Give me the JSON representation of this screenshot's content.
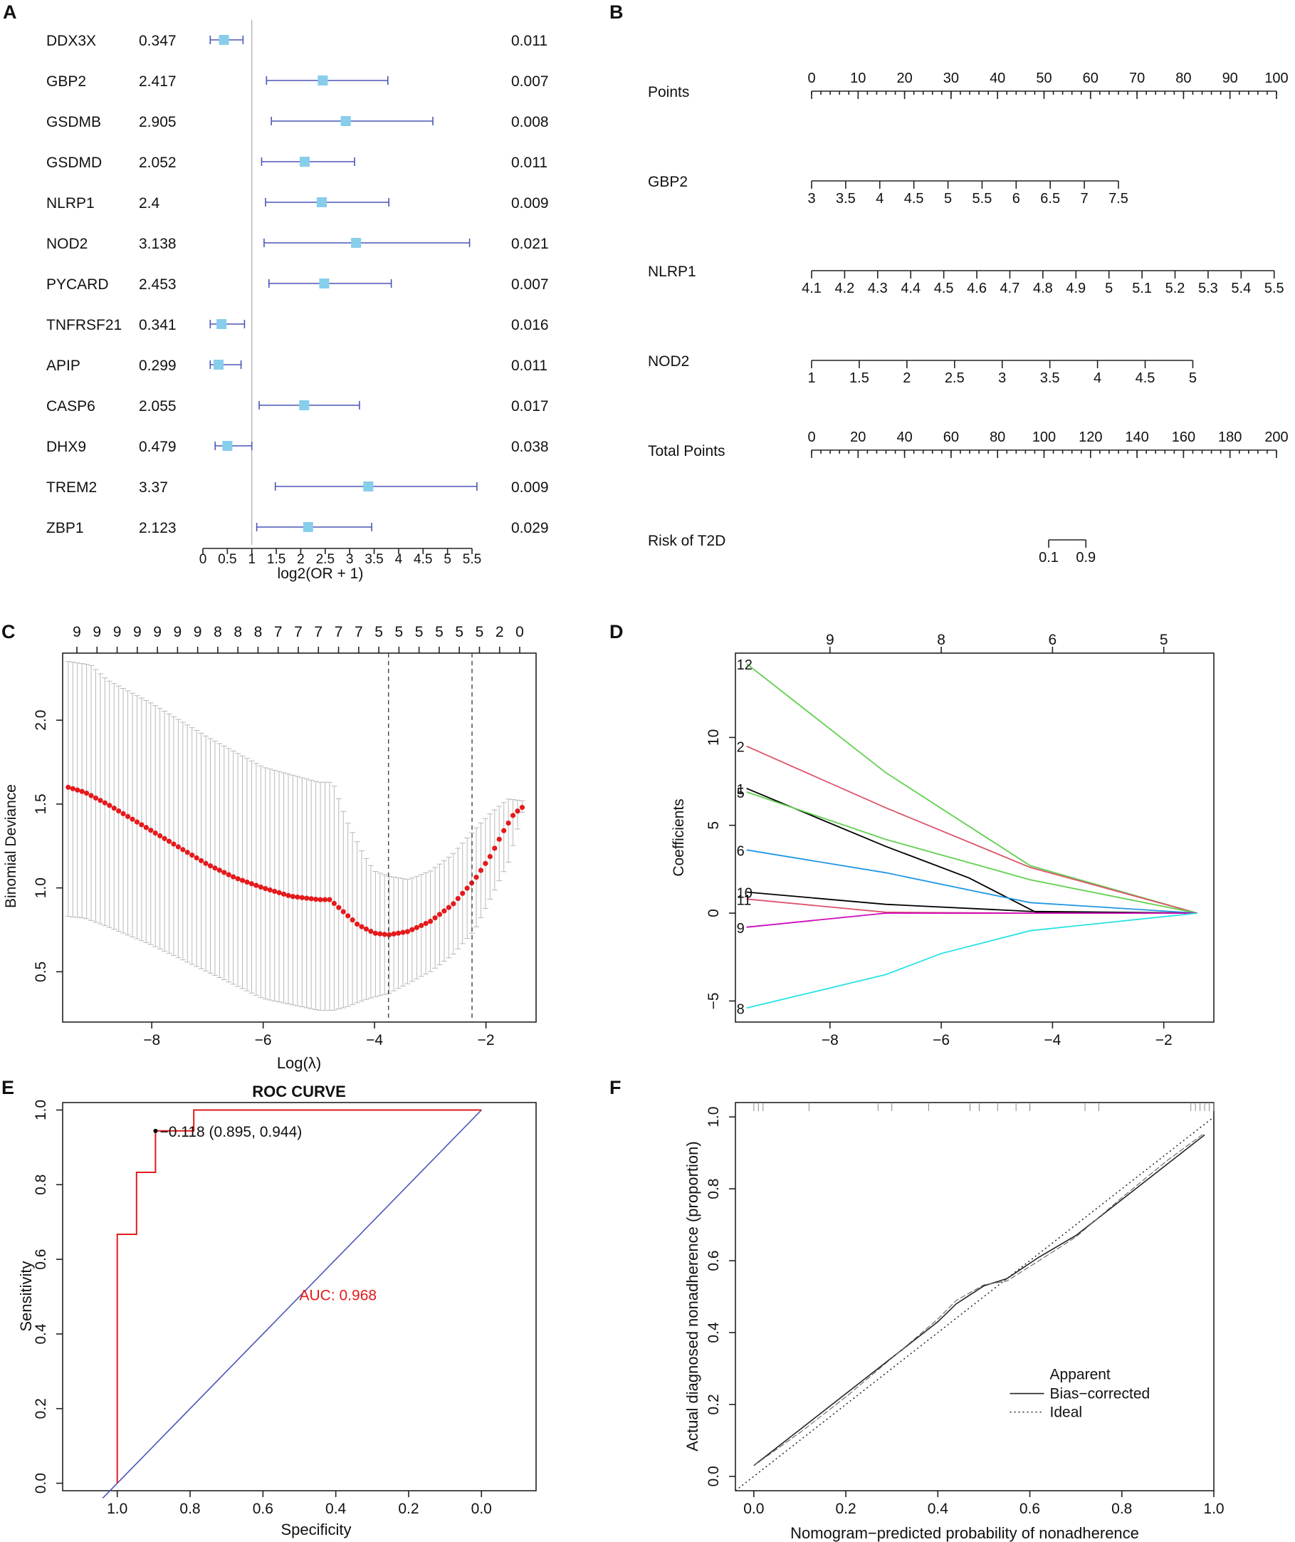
{
  "panel_labels": [
    "A",
    "B",
    "C",
    "D",
    "E",
    "F"
  ],
  "chart_data": [
    {
      "panel": "A",
      "type": "forest",
      "xlabel": "log2(OR + 1)",
      "xlim": [
        0,
        5.5
      ],
      "xticks": [
        "0",
        "0.5",
        "1",
        "1.5",
        "2",
        "2.5",
        "3",
        "3.5",
        "4",
        "4.5",
        "5",
        "5.5"
      ],
      "reference_line": 1,
      "rows": [
        {
          "gene": "DDX3X",
          "or": "0.347",
          "p": "0.011",
          "est": 0.43,
          "lo": 0.15,
          "hi": 0.82
        },
        {
          "gene": "GBP2",
          "or": "2.417",
          "p": "0.007",
          "est": 2.45,
          "lo": 1.3,
          "hi": 3.78
        },
        {
          "gene": "GSDMB",
          "or": "2.905",
          "p": "0.008",
          "est": 2.92,
          "lo": 1.4,
          "hi": 4.7
        },
        {
          "gene": "GSDMD",
          "or": "2.052",
          "p": "0.011",
          "est": 2.08,
          "lo": 1.2,
          "hi": 3.1
        },
        {
          "gene": "NLRP1",
          "or": "2.4",
          "p": "0.009",
          "est": 2.43,
          "lo": 1.28,
          "hi": 3.8
        },
        {
          "gene": "NOD2",
          "or": "3.138",
          "p": "0.021",
          "est": 3.13,
          "lo": 1.25,
          "hi": 5.45
        },
        {
          "gene": "PYCARD",
          "or": "2.453",
          "p": "0.007",
          "est": 2.48,
          "lo": 1.35,
          "hi": 3.85
        },
        {
          "gene": "TNFRSF21",
          "or": "0.341",
          "p": "0.016",
          "est": 0.38,
          "lo": 0.15,
          "hi": 0.85
        },
        {
          "gene": "APIP",
          "or": "0.299",
          "p": "0.011",
          "est": 0.32,
          "lo": 0.15,
          "hi": 0.78
        },
        {
          "gene": "CASP6",
          "or": "2.055",
          "p": "0.017",
          "est": 2.07,
          "lo": 1.15,
          "hi": 3.2
        },
        {
          "gene": "DHX9",
          "or": "0.479",
          "p": "0.038",
          "est": 0.5,
          "lo": 0.25,
          "hi": 1.0
        },
        {
          "gene": "TREM2",
          "or": "3.37",
          "p": "0.009",
          "est": 3.38,
          "lo": 1.48,
          "hi": 5.6
        },
        {
          "gene": "ZBP1",
          "or": "2.123",
          "p": "0.029",
          "est": 2.15,
          "lo": 1.1,
          "hi": 3.45
        }
      ]
    },
    {
      "panel": "B",
      "type": "nomogram",
      "rows": [
        {
          "label": "Points",
          "ticks": [
            "0",
            "10",
            "20",
            "30",
            "40",
            "50",
            "60",
            "70",
            "80",
            "90",
            "100"
          ],
          "from": 0,
          "to": 100,
          "minor": 50
        },
        {
          "label": "GBP2",
          "ticks": [
            "3",
            "3.5",
            "4",
            "4.5",
            "5",
            "5.5",
            "6",
            "6.5",
            "7",
            "7.5"
          ],
          "from": 0,
          "to": 66
        },
        {
          "label": "NLRP1",
          "ticks": [
            "4.1",
            "4.2",
            "4.3",
            "4.4",
            "4.5",
            "4.6",
            "4.7",
            "4.8",
            "4.9",
            "5",
            "5.1",
            "5.2",
            "5.3",
            "5.4",
            "5.5"
          ],
          "from": 0,
          "to": 99.5
        },
        {
          "label": "NOD2",
          "ticks": [
            "1",
            "1.5",
            "2",
            "2.5",
            "3",
            "3.5",
            "4",
            "4.5",
            "5"
          ],
          "from": 0,
          "to": 82
        },
        {
          "label": "Total Points",
          "ticks": [
            "0",
            "20",
            "40",
            "60",
            "80",
            "100",
            "120",
            "140",
            "160",
            "180",
            "200"
          ],
          "from": 0,
          "to": 100,
          "minor": 50
        },
        {
          "label": "Risk of T2D",
          "ticks": [
            "0.1",
            "0.9"
          ],
          "from": 51,
          "to": 59
        }
      ]
    },
    {
      "panel": "C",
      "type": "cv_deviance",
      "xlabel": "Log(λ)",
      "ylabel": "Binomial Deviance",
      "xlim": [
        -9.6,
        -1.1
      ],
      "ylim": [
        0.2,
        2.4
      ],
      "xticks": [
        -8,
        -6,
        -4,
        -2
      ],
      "xtick_labels": [
        "−8",
        "−6",
        "−4",
        "−2"
      ],
      "yticks": [
        0.5,
        1.0,
        1.5,
        2.0
      ],
      "ytick_labels": [
        "0.5",
        "1.0",
        "1.5",
        "2.0"
      ],
      "top_labels": [
        "9",
        "9",
        "9",
        "9",
        "9",
        "9",
        "9",
        "8",
        "8",
        "8",
        "7",
        "7",
        "7",
        "7",
        "7",
        "5",
        "5",
        "5",
        "5",
        "5",
        "5",
        "2",
        "0"
      ],
      "lambda_min": -3.75,
      "lambda_1se": -2.25,
      "curve_x": [
        -9.5,
        -9.2,
        -8.8,
        -8.5,
        -8.0,
        -7.5,
        -7.0,
        -6.5,
        -6.0,
        -5.5,
        -5.0,
        -4.8,
        -4.6,
        -4.3,
        -4.0,
        -3.75,
        -3.4,
        -3.0,
        -2.6,
        -2.2,
        -1.9,
        -1.7,
        -1.5,
        -1.35
      ],
      "curve_y": [
        1.6,
        1.57,
        1.5,
        1.44,
        1.34,
        1.24,
        1.14,
        1.06,
        1.0,
        0.95,
        0.93,
        0.93,
        0.87,
        0.78,
        0.73,
        0.72,
        0.74,
        0.8,
        0.9,
        1.05,
        1.2,
        1.33,
        1.44,
        1.48
      ],
      "upper_x": [
        -9.5,
        -9.1,
        -8.8,
        -8.0,
        -7.0,
        -6.0,
        -5.0,
        -4.75,
        -4.5,
        -4.2,
        -4.0,
        -3.75,
        -3.4,
        -3.0,
        -2.6,
        -2.2,
        -1.9,
        -1.6,
        -1.35
      ],
      "upper_y": [
        2.35,
        2.33,
        2.24,
        2.1,
        1.9,
        1.72,
        1.63,
        1.63,
        1.4,
        1.2,
        1.1,
        1.07,
        1.05,
        1.1,
        1.2,
        1.35,
        1.45,
        1.53,
        1.52
      ],
      "lower_x": [
        -9.5,
        -9.2,
        -8.8,
        -8.0,
        -7.0,
        -6.0,
        -5.0,
        -4.75,
        -4.5,
        -4.2,
        -4.0,
        -3.75,
        -3.4,
        -3.0,
        -2.6,
        -2.2,
        -1.9,
        -1.6,
        -1.35
      ],
      "lower_y": [
        0.83,
        0.82,
        0.77,
        0.66,
        0.5,
        0.34,
        0.27,
        0.27,
        0.29,
        0.33,
        0.35,
        0.37,
        0.43,
        0.5,
        0.6,
        0.75,
        0.95,
        1.15,
        1.45
      ]
    },
    {
      "panel": "D",
      "type": "lasso_path",
      "ylabel": "Coefficients",
      "xlim": [
        -9.7,
        -1.1
      ],
      "ylim": [
        -6.2,
        14.8
      ],
      "xticks": [
        -8,
        -6,
        -4,
        -2
      ],
      "xtick_labels": [
        "−8",
        "−6",
        "−4",
        "−2"
      ],
      "yticks": [
        -5,
        0,
        5,
        10
      ],
      "ytick_labels": [
        "−5",
        "0",
        "5",
        "10"
      ],
      "top_ticks": [
        -8,
        -6,
        -4,
        -2
      ],
      "top_labels": [
        "9",
        "8",
        "6",
        "5"
      ],
      "series": [
        {
          "name": "12",
          "color": "#61d04f",
          "x": [
            -9.5,
            -7.0,
            -4.4,
            -1.4
          ],
          "y": [
            14.2,
            8.0,
            2.7,
            0
          ]
        },
        {
          "name": "2",
          "color": "#df536b",
          "x": [
            -9.5,
            -7.0,
            -4.4,
            -1.4
          ],
          "y": [
            9.5,
            6.0,
            2.6,
            0
          ]
        },
        {
          "name": "1",
          "color": "#000000",
          "x": [
            -9.5,
            -7.0,
            -5.5,
            -4.3,
            -1.4
          ],
          "y": [
            7.1,
            3.8,
            2.0,
            0.05,
            0
          ]
        },
        {
          "name": "5",
          "color": "#61d04f",
          "x": [
            -9.5,
            -7.0,
            -4.4,
            -1.4
          ],
          "y": [
            6.9,
            4.2,
            1.9,
            0
          ]
        },
        {
          "name": "6",
          "color": "#2297e6",
          "x": [
            -9.5,
            -7.0,
            -4.4,
            -1.4
          ],
          "y": [
            3.6,
            2.3,
            0.6,
            0
          ]
        },
        {
          "name": "10",
          "color": "#000000",
          "x": [
            -9.5,
            -7.0,
            -4.4,
            -1.4
          ],
          "y": [
            1.2,
            0.5,
            0.1,
            0
          ]
        },
        {
          "name": "11",
          "color": "#df536b",
          "x": [
            -9.5,
            -7.0,
            -4.4,
            -1.4
          ],
          "y": [
            0.8,
            0.05,
            0,
            0
          ]
        },
        {
          "name": "9",
          "color": "#cd0bbc",
          "x": [
            -9.5,
            -7.0,
            -4.4,
            -1.4
          ],
          "y": [
            -0.8,
            0,
            0,
            0
          ]
        },
        {
          "name": "8",
          "color": "#28e2e5",
          "x": [
            -9.5,
            -7.0,
            -6.0,
            -4.4,
            -1.4
          ],
          "y": [
            -5.4,
            -3.5,
            -2.3,
            -1.0,
            0
          ]
        }
      ]
    },
    {
      "panel": "E",
      "type": "roc",
      "title": "ROC CURVE",
      "xlabel": "Specificity",
      "ylabel": "Sensitivity",
      "xlim": [
        1.15,
        -0.15
      ],
      "ylim": [
        -0.02,
        1.02
      ],
      "xticks": [
        1.0,
        0.8,
        0.6,
        0.4,
        0.2,
        0.0
      ],
      "xtick_labels": [
        "1.0",
        "0.8",
        "0.6",
        "0.4",
        "0.2",
        "0.0"
      ],
      "yticks": [
        0.0,
        0.2,
        0.4,
        0.6,
        0.8,
        1.0
      ],
      "ytick_labels": [
        "0.0",
        "0.2",
        "0.4",
        "0.6",
        "0.8",
        "1.0"
      ],
      "auc_label": "AUC: 0.968",
      "threshold_label": "0.118 (0.895, 0.944)",
      "threshold_point": [
        0.895,
        0.944
      ],
      "curve_spec": [
        1.0,
        1.0,
        0.947,
        0.947,
        0.895,
        0.895,
        0.79,
        0.79,
        0.0
      ],
      "curve_sens": [
        0.0,
        0.667,
        0.667,
        0.833,
        0.833,
        0.944,
        0.944,
        1.0,
        1.0
      ]
    },
    {
      "panel": "F",
      "type": "calibration",
      "xlabel": "Nomogram−predicted probability of nonadherence",
      "ylabel": "Actual diagnosed nonadherence (proportion)",
      "xlim": [
        -0.04,
        1.0
      ],
      "ylim": [
        -0.04,
        1.04
      ],
      "xticks": [
        0.0,
        0.2,
        0.4,
        0.6,
        0.8,
        1.0
      ],
      "xtick_labels": [
        "0.0",
        "0.2",
        "0.4",
        "0.6",
        "0.8",
        "1.0"
      ],
      "yticks": [
        0.0,
        0.2,
        0.4,
        0.6,
        0.8,
        1.0
      ],
      "ytick_labels": [
        "0.0",
        "0.2",
        "0.4",
        "0.6",
        "0.8",
        "1.0"
      ],
      "legend": [
        "Apparent",
        "Bias−corrected",
        "Ideal"
      ],
      "rug": [
        0.0,
        0.01,
        0.02,
        0.12,
        0.27,
        0.3,
        0.38,
        0.47,
        0.49,
        0.53,
        0.57,
        0.6,
        0.72,
        0.75,
        0.95,
        0.96,
        0.97,
        0.98,
        0.99,
        1.0
      ],
      "apparent_x": [
        0.0,
        0.1,
        0.2,
        0.3,
        0.4,
        0.44,
        0.5,
        0.55,
        0.62,
        0.7,
        0.8,
        0.9,
        0.98
      ],
      "apparent_y": [
        0.03,
        0.13,
        0.23,
        0.33,
        0.43,
        0.48,
        0.53,
        0.55,
        0.61,
        0.67,
        0.77,
        0.87,
        0.95
      ],
      "ideal_x": [
        -0.04,
        1.0
      ],
      "ideal_y": [
        -0.04,
        1.0
      ]
    }
  ]
}
